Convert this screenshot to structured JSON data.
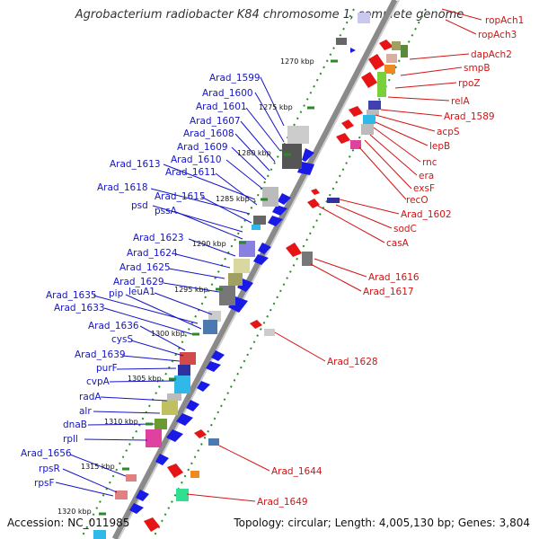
{
  "header": {
    "title": "Agrobacterium radiobacter K84 chromosome 1, complete genome"
  },
  "footer": {
    "accession": "Accession: NC_011985",
    "summary": "Topology: circular; Length: 4,005,130 bp; Genes: 3,804"
  },
  "scale_labels": [
    {
      "text": "1270 kbp"
    },
    {
      "text": "1275 kbp"
    },
    {
      "text": "1280 kbp"
    },
    {
      "text": "1285 kbp"
    },
    {
      "text": "1290 kbp"
    },
    {
      "text": "1295 kbp"
    },
    {
      "text": "1300 kbp"
    },
    {
      "text": "1305 kbp"
    },
    {
      "text": "1310 kbp"
    },
    {
      "text": "1315 kbp"
    },
    {
      "text": "1320 kbp"
    }
  ],
  "left_labels": [
    "Arad_1599",
    "Arad_1600",
    "Arad_1601",
    "Arad_1607",
    "Arad_1608",
    "Arad_1609",
    "Arad_1610",
    "Arad_1613",
    "Arad_1611",
    "Arad_1618",
    "Arad_1615",
    "psd",
    "pssA",
    "Arad_1623",
    "Arad_1624",
    "Arad_1625",
    "Arad_1629",
    "Arad_1635",
    "pip",
    "leuA1",
    "Arad_1633",
    "Arad_1636",
    "cysS",
    "Arad_1639",
    "purF",
    "cvpA",
    "radA",
    "alr",
    "dnaB",
    "rpll",
    "Arad_1656",
    "rpsR",
    "rpsF"
  ],
  "right_labels": [
    "ropAch1",
    "ropAch3",
    "dapAch2",
    "smpB",
    "rpoZ",
    "relA",
    "Arad_1589",
    "acpS",
    "lepB",
    "rnc",
    "era",
    "exsF",
    "recO",
    "Arad_1602",
    "sodC",
    "casA",
    "Arad_1616",
    "Arad_1617",
    "Arad_1628",
    "Arad_1644",
    "Arad_1649"
  ],
  "colors": {
    "forward": "#1a1ae6",
    "reverse": "#e61414",
    "backbone": "#8c8c8c",
    "tick": "#2a8a2a"
  }
}
